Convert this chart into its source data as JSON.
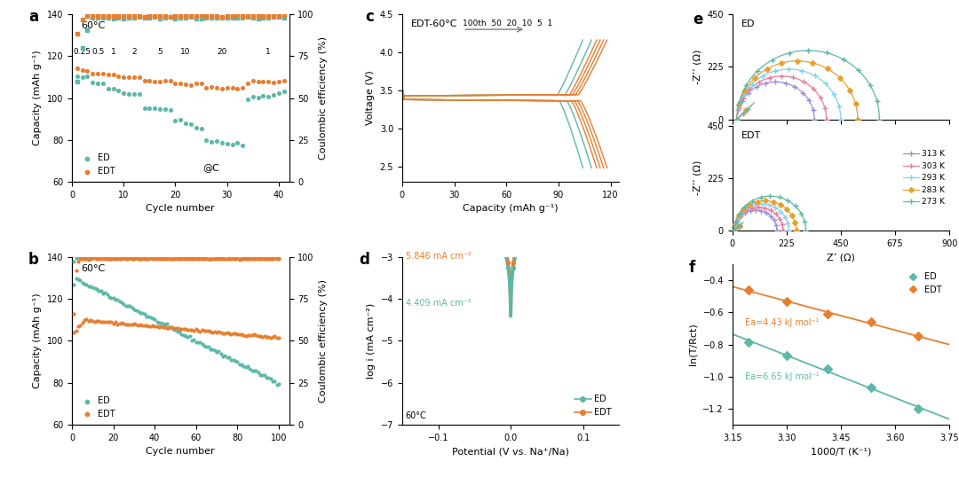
{
  "colors": {
    "ED": "#5DB8A8",
    "EDT": "#E87E2E",
    "313K": "#9B8FD4",
    "303K": "#E87EA0",
    "293K": "#87CEEB",
    "283K": "#E8A030",
    "273K": "#5DB8A8"
  },
  "panel_a": {
    "title": "60°C",
    "xlabel": "Cycle number",
    "ylabel_left": "Capacity (mAh g⁻¹)",
    "ylabel_right": "Coulombic efficiency (%)",
    "ylim_left": [
      60,
      140
    ],
    "ylim_right": [
      0,
      100
    ],
    "xlim": [
      0,
      42
    ],
    "crate_labels": [
      "0.25",
      "0.5",
      "1",
      "2",
      "5",
      "10",
      "20",
      "1"
    ],
    "crate_x": [
      2,
      5,
      8,
      12,
      17,
      22,
      29,
      38
    ],
    "annotation": "@C"
  },
  "panel_b": {
    "title": "60°C",
    "xlabel": "Cycle number",
    "ylabel_left": "Capacity (mAh g⁻¹)",
    "ylabel_right": "Coulombic efficiency (%)",
    "ylim_left": [
      60,
      140
    ],
    "ylim_right": [
      0,
      100
    ],
    "xlim": [
      0,
      105
    ]
  },
  "panel_c": {
    "title": "EDT-60°C",
    "xlabel": "Capacity (mAh g⁻¹)",
    "ylabel": "Voltage (V)",
    "ylim": [
      2.3,
      4.5
    ],
    "xlim": [
      0,
      125
    ]
  },
  "panel_d": {
    "xlabel": "Potential (V vs. Na⁺/Na)",
    "ylabel": "log i (mA cm⁻²)",
    "ylim": [
      -7,
      -3
    ],
    "xlim": [
      -0.15,
      0.15
    ],
    "annotation1": "5.846 mA cm⁻²",
    "annotation2": "4.409 mA cm⁻²",
    "annotation3": "60°C"
  },
  "panel_e": {
    "ylabel": "-Z’’ (Ω)",
    "xlabel": "Z’ (Ω)",
    "ylim": [
      0,
      450
    ],
    "xlim": [
      0,
      900
    ],
    "temps": [
      "313 K",
      "303 K",
      "293 K",
      "283 K",
      "273 K"
    ]
  },
  "panel_f": {
    "xlabel": "1000/T (K⁻¹)",
    "ylabel": "ln(T/Rct)",
    "xlim": [
      3.15,
      3.75
    ],
    "ylim": [
      -1.3,
      -0.3
    ],
    "annotation_ED": "Ea=6.65 kJ mol⁻¹",
    "annotation_EDT": "Ea=4.43 kJ mol⁻¹"
  }
}
